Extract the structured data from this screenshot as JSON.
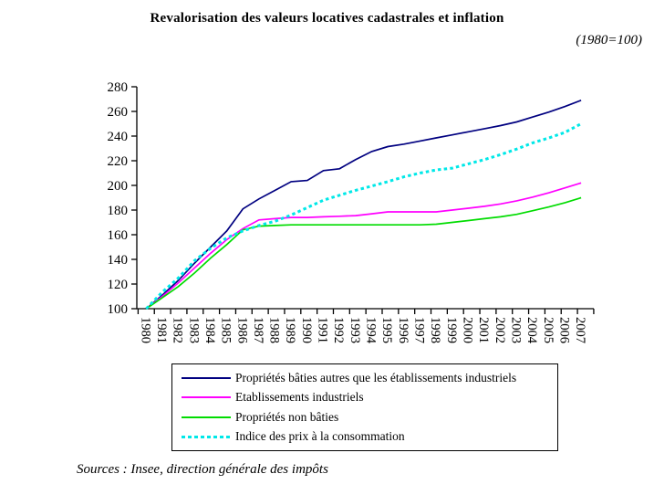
{
  "title": "Revalorisation des valeurs locatives cadastrales et inflation",
  "subtitle": "(1980=100)",
  "source": "Sources : Insee, direction générale des impôts",
  "chart_data": {
    "type": "line",
    "x": [
      "1980",
      "1981",
      "1982",
      "1983",
      "1984",
      "1985",
      "1986",
      "1987",
      "1988",
      "1989",
      "1990",
      "1991",
      "1992",
      "1993",
      "1994",
      "1995",
      "1996",
      "1997",
      "1998",
      "1999",
      "2000",
      "2001",
      "2002",
      "2003",
      "2004",
      "2005",
      "2006",
      "2007"
    ],
    "series": [
      {
        "name": "Propriétés bâties autres que les établissements industriels",
        "color": "#000080",
        "style": "solid",
        "values": [
          100,
          111,
          123,
          137,
          150,
          163,
          181,
          189,
          196,
          203,
          204,
          212,
          213.5,
          221,
          227.5,
          231.5,
          233.5,
          236,
          238.5,
          241,
          243.5,
          246,
          248.5,
          251.5,
          255.5,
          259.5,
          264,
          269
        ]
      },
      {
        "name": "Etablissements industriels",
        "color": "#FF00FF",
        "style": "solid",
        "values": [
          100,
          110,
          121,
          133,
          145,
          156,
          165,
          172,
          173,
          174,
          174,
          174.5,
          175,
          175.5,
          177,
          178.5,
          178.5,
          178.5,
          178.5,
          180,
          181.5,
          183,
          185,
          187.5,
          190.5,
          194,
          198,
          202
        ]
      },
      {
        "name": "Propriétés non bâties",
        "color": "#00DC00",
        "style": "solid",
        "values": [
          100,
          109,
          118,
          129,
          141,
          152,
          164,
          167,
          167.5,
          168,
          168,
          168,
          168,
          168,
          168,
          168,
          168,
          168,
          168.5,
          170,
          171.5,
          173,
          174.5,
          176.5,
          179.5,
          182.5,
          186,
          190
        ]
      },
      {
        "name": "Indice des prix à la consommation",
        "color": "#00E8E8",
        "style": "dashed",
        "values": [
          100,
          113.5,
          125,
          139,
          149,
          157.5,
          163,
          167.5,
          171,
          176,
          182,
          188,
          192,
          196,
          199.5,
          203,
          207,
          210,
          212.5,
          214,
          217.5,
          221,
          225,
          229.5,
          234.5,
          238.5,
          243,
          250
        ]
      }
    ],
    "ylim": [
      100,
      280
    ],
    "ytick_step": 20,
    "y_ticks": [
      100,
      120,
      140,
      160,
      180,
      200,
      220,
      240,
      260,
      280
    ],
    "xlabel": "",
    "ylabel": "",
    "grid": false,
    "legend_position": "bottom",
    "axis_color": "#000000"
  }
}
